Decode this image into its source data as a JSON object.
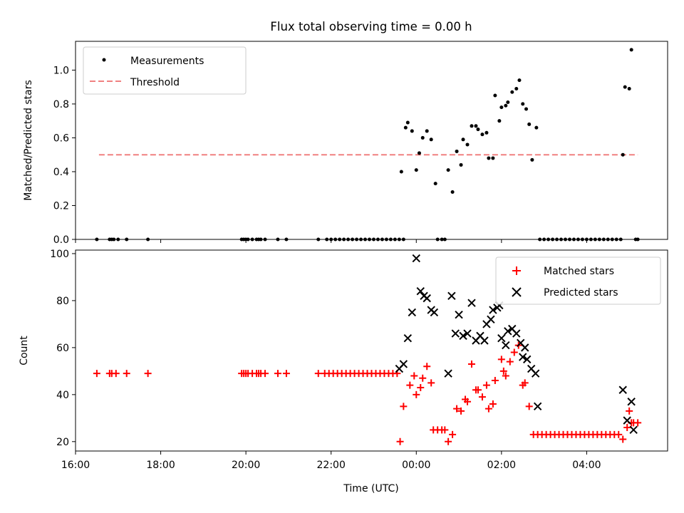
{
  "title": "Flux total observing time = 0.00 h",
  "colors": {
    "measurement": "#000000",
    "threshold": "#f08080",
    "matched": "#ff0000",
    "predicted": "#000000",
    "legend_border": "#cccccc"
  },
  "chart_data": [
    {
      "type": "scatter",
      "title": "Flux total observing time = 0.00 h",
      "ylabel": "Matched/Predicted stars",
      "xlabel": "",
      "xlim": [
        16.0,
        29.9
      ],
      "ylim": [
        0.0,
        1.17
      ],
      "yticks": [
        "0.0",
        "0.2",
        "0.4",
        "0.6",
        "0.8",
        "1.0"
      ],
      "ytick_values": [
        0.0,
        0.2,
        0.4,
        0.6,
        0.8,
        1.0
      ],
      "legend": {
        "placement": "upper-left",
        "entries": [
          "Measurements",
          "Threshold"
        ]
      },
      "threshold": {
        "name": "Threshold",
        "value": 0.5,
        "x_range": [
          16.55,
          29.2
        ]
      },
      "series": [
        {
          "name": "Measurements",
          "points": [
            [
              16.5,
              0
            ],
            [
              16.8,
              0
            ],
            [
              16.85,
              0
            ],
            [
              16.9,
              0
            ],
            [
              17.0,
              0
            ],
            [
              17.2,
              0
            ],
            [
              17.7,
              0
            ],
            [
              19.9,
              0
            ],
            [
              19.95,
              0
            ],
            [
              20.0,
              0
            ],
            [
              20.05,
              0
            ],
            [
              20.15,
              0
            ],
            [
              20.25,
              0
            ],
            [
              20.3,
              0
            ],
            [
              20.35,
              0
            ],
            [
              20.45,
              0
            ],
            [
              20.75,
              0
            ],
            [
              20.95,
              0
            ],
            [
              21.7,
              0
            ],
            [
              21.9,
              0
            ],
            [
              22.0,
              0
            ],
            [
              22.1,
              0
            ],
            [
              22.2,
              0
            ],
            [
              22.3,
              0
            ],
            [
              22.4,
              0
            ],
            [
              22.5,
              0
            ],
            [
              22.6,
              0
            ],
            [
              22.7,
              0
            ],
            [
              22.8,
              0
            ],
            [
              22.9,
              0
            ],
            [
              23.0,
              0
            ],
            [
              23.1,
              0
            ],
            [
              23.2,
              0
            ],
            [
              23.3,
              0
            ],
            [
              23.4,
              0
            ],
            [
              23.5,
              0
            ],
            [
              23.6,
              0
            ],
            [
              23.7,
              0
            ],
            [
              23.65,
              0.4
            ],
            [
              23.75,
              0.66
            ],
            [
              23.8,
              0.69
            ],
            [
              23.9,
              0.64
            ],
            [
              24.0,
              0.41
            ],
            [
              24.07,
              0.51
            ],
            [
              24.15,
              0.6
            ],
            [
              24.25,
              0.64
            ],
            [
              24.35,
              0.59
            ],
            [
              24.45,
              0.33
            ],
            [
              24.5,
              0
            ],
            [
              24.6,
              0
            ],
            [
              24.67,
              0
            ],
            [
              24.75,
              0.41
            ],
            [
              24.85,
              0.28
            ],
            [
              24.95,
              0.52
            ],
            [
              25.05,
              0.44
            ],
            [
              25.1,
              0.59
            ],
            [
              25.2,
              0.56
            ],
            [
              25.3,
              0.67
            ],
            [
              25.4,
              0.67
            ],
            [
              25.45,
              0.65
            ],
            [
              25.55,
              0.62
            ],
            [
              25.65,
              0.63
            ],
            [
              25.7,
              0.48
            ],
            [
              25.8,
              0.48
            ],
            [
              25.85,
              0.85
            ],
            [
              25.95,
              0.7
            ],
            [
              26.0,
              0.78
            ],
            [
              26.1,
              0.79
            ],
            [
              26.15,
              0.81
            ],
            [
              26.25,
              0.87
            ],
            [
              26.35,
              0.89
            ],
            [
              26.42,
              0.94
            ],
            [
              26.5,
              0.8
            ],
            [
              26.58,
              0.77
            ],
            [
              26.65,
              0.68
            ],
            [
              26.72,
              0.47
            ],
            [
              26.82,
              0.66
            ],
            [
              26.9,
              0
            ],
            [
              27.0,
              0
            ],
            [
              27.1,
              0
            ],
            [
              27.2,
              0
            ],
            [
              27.3,
              0
            ],
            [
              27.4,
              0
            ],
            [
              27.5,
              0
            ],
            [
              27.6,
              0
            ],
            [
              27.7,
              0
            ],
            [
              27.8,
              0
            ],
            [
              27.9,
              0
            ],
            [
              28.0,
              0
            ],
            [
              28.1,
              0
            ],
            [
              28.2,
              0
            ],
            [
              28.3,
              0
            ],
            [
              28.4,
              0
            ],
            [
              28.5,
              0
            ],
            [
              28.6,
              0
            ],
            [
              28.7,
              0
            ],
            [
              28.8,
              0
            ],
            [
              28.85,
              0.5
            ],
            [
              28.9,
              0.9
            ],
            [
              29.0,
              0.89
            ],
            [
              29.05,
              1.12
            ],
            [
              29.15,
              0
            ],
            [
              29.2,
              0
            ]
          ]
        }
      ]
    },
    {
      "type": "scatter",
      "title": "",
      "ylabel": "Count",
      "xlabel": "Time (UTC)",
      "xlim": [
        16.0,
        29.9
      ],
      "ylim": [
        16,
        101.5
      ],
      "yticks": [
        "20",
        "40",
        "60",
        "80",
        "100"
      ],
      "ytick_values": [
        20,
        40,
        60,
        80,
        100
      ],
      "xticks": [
        "16:00",
        "18:00",
        "20:00",
        "22:00",
        "00:00",
        "02:00",
        "04:00"
      ],
      "xtick_values": [
        16,
        18,
        20,
        22,
        24,
        26,
        28
      ],
      "legend": {
        "placement": "upper-right",
        "entries": [
          "Matched stars",
          "Predicted stars"
        ]
      },
      "series": [
        {
          "name": "Matched stars",
          "points": [
            [
              16.5,
              49
            ],
            [
              16.8,
              49
            ],
            [
              16.85,
              49
            ],
            [
              16.95,
              49
            ],
            [
              17.2,
              49
            ],
            [
              17.7,
              49
            ],
            [
              19.9,
              49
            ],
            [
              19.95,
              49
            ],
            [
              20.0,
              49
            ],
            [
              20.05,
              49
            ],
            [
              20.15,
              49
            ],
            [
              20.25,
              49
            ],
            [
              20.3,
              49
            ],
            [
              20.35,
              49
            ],
            [
              20.45,
              49
            ],
            [
              20.75,
              49
            ],
            [
              20.95,
              49
            ],
            [
              21.7,
              49
            ],
            [
              21.85,
              49
            ],
            [
              21.95,
              49
            ],
            [
              22.05,
              49
            ],
            [
              22.15,
              49
            ],
            [
              22.25,
              49
            ],
            [
              22.35,
              49
            ],
            [
              22.45,
              49
            ],
            [
              22.55,
              49
            ],
            [
              22.65,
              49
            ],
            [
              22.75,
              49
            ],
            [
              22.85,
              49
            ],
            [
              22.95,
              49
            ],
            [
              23.05,
              49
            ],
            [
              23.15,
              49
            ],
            [
              23.25,
              49
            ],
            [
              23.35,
              49
            ],
            [
              23.45,
              49
            ],
            [
              23.55,
              49
            ],
            [
              23.62,
              20
            ],
            [
              23.7,
              35
            ],
            [
              23.85,
              44
            ],
            [
              23.95,
              48
            ],
            [
              24.0,
              40
            ],
            [
              24.1,
              43
            ],
            [
              24.15,
              47
            ],
            [
              24.25,
              52
            ],
            [
              24.35,
              45
            ],
            [
              24.4,
              25
            ],
            [
              24.5,
              25
            ],
            [
              24.6,
              25
            ],
            [
              24.67,
              25
            ],
            [
              24.75,
              20
            ],
            [
              24.85,
              23
            ],
            [
              24.95,
              34
            ],
            [
              25.05,
              33
            ],
            [
              25.15,
              38
            ],
            [
              25.2,
              37
            ],
            [
              25.3,
              53
            ],
            [
              25.4,
              42
            ],
            [
              25.45,
              42
            ],
            [
              25.55,
              39
            ],
            [
              25.65,
              44
            ],
            [
              25.7,
              34
            ],
            [
              25.8,
              36
            ],
            [
              25.85,
              46
            ],
            [
              26.0,
              55
            ],
            [
              26.05,
              50
            ],
            [
              26.1,
              48
            ],
            [
              26.2,
              54
            ],
            [
              26.3,
              58
            ],
            [
              26.4,
              61
            ],
            [
              26.5,
              44
            ],
            [
              26.55,
              45
            ],
            [
              26.65,
              35
            ],
            [
              26.75,
              23
            ],
            [
              26.85,
              23
            ],
            [
              26.95,
              23
            ],
            [
              27.05,
              23
            ],
            [
              27.15,
              23
            ],
            [
              27.25,
              23
            ],
            [
              27.35,
              23
            ],
            [
              27.45,
              23
            ],
            [
              27.55,
              23
            ],
            [
              27.65,
              23
            ],
            [
              27.75,
              23
            ],
            [
              27.85,
              23
            ],
            [
              27.95,
              23
            ],
            [
              28.05,
              23
            ],
            [
              28.15,
              23
            ],
            [
              28.25,
              23
            ],
            [
              28.35,
              23
            ],
            [
              28.45,
              23
            ],
            [
              28.55,
              23
            ],
            [
              28.65,
              23
            ],
            [
              28.75,
              23
            ],
            [
              28.85,
              21
            ],
            [
              28.95,
              26
            ],
            [
              29.0,
              33
            ],
            [
              29.05,
              28
            ],
            [
              29.1,
              28
            ],
            [
              29.2,
              28
            ]
          ]
        },
        {
          "name": "Predicted stars",
          "points": [
            [
              23.6,
              51
            ],
            [
              23.7,
              53
            ],
            [
              23.8,
              64
            ],
            [
              23.9,
              75
            ],
            [
              24.0,
              98
            ],
            [
              24.1,
              84
            ],
            [
              24.18,
              82
            ],
            [
              24.25,
              81
            ],
            [
              24.35,
              76
            ],
            [
              24.42,
              75
            ],
            [
              24.75,
              49
            ],
            [
              24.83,
              82
            ],
            [
              24.92,
              66
            ],
            [
              25.0,
              74
            ],
            [
              25.1,
              65
            ],
            [
              25.2,
              66
            ],
            [
              25.3,
              79
            ],
            [
              25.4,
              63
            ],
            [
              25.5,
              65
            ],
            [
              25.6,
              63
            ],
            [
              25.65,
              70
            ],
            [
              25.75,
              72
            ],
            [
              25.8,
              76
            ],
            [
              25.9,
              77
            ],
            [
              25.95,
              78
            ],
            [
              26.0,
              64
            ],
            [
              26.1,
              61
            ],
            [
              26.15,
              67
            ],
            [
              26.25,
              68
            ],
            [
              26.35,
              66
            ],
            [
              26.45,
              62
            ],
            [
              26.5,
              56
            ],
            [
              26.55,
              60
            ],
            [
              26.6,
              55
            ],
            [
              26.7,
              51
            ],
            [
              26.8,
              49
            ],
            [
              26.85,
              35
            ],
            [
              28.85,
              42
            ],
            [
              28.95,
              29
            ],
            [
              29.05,
              37
            ],
            [
              29.1,
              25
            ]
          ]
        }
      ]
    }
  ]
}
